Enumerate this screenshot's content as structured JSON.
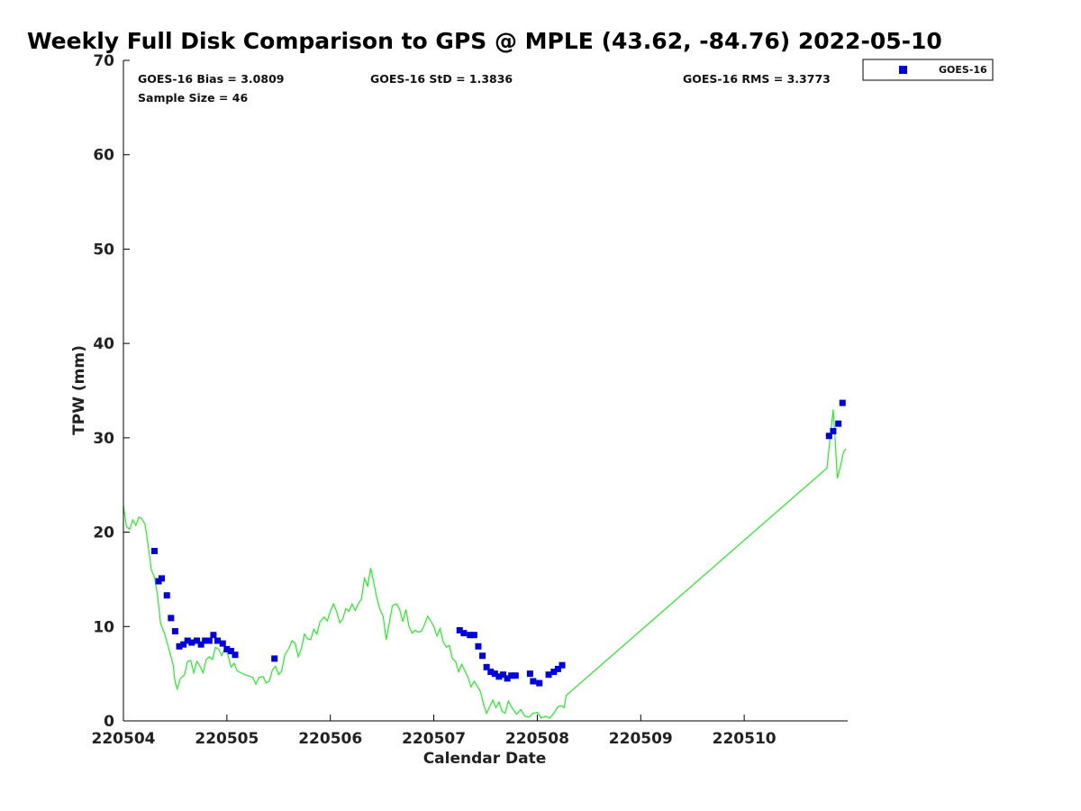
{
  "chart_data": {
    "type": "scatter",
    "title": "Weekly Full Disk Comparison to GPS @ MPLE (43.62, -84.76) 2022-05-10",
    "xlabel": "Calendar Date",
    "ylabel": "TPW (mm)",
    "xlim": [
      0,
      7
    ],
    "ylim": [
      0,
      70
    ],
    "x_ticks": [
      {
        "value": 0,
        "label": "220504"
      },
      {
        "value": 1,
        "label": "220505"
      },
      {
        "value": 2,
        "label": "220506"
      },
      {
        "value": 3,
        "label": "220507"
      },
      {
        "value": 4,
        "label": "220508"
      },
      {
        "value": 5,
        "label": "220509"
      },
      {
        "value": 6,
        "label": "220510"
      }
    ],
    "y_ticks": [
      0,
      10,
      20,
      30,
      40,
      50,
      60,
      70
    ],
    "stats": {
      "bias": "GOES-16 Bias = 3.0809",
      "std": "GOES-16 StD = 1.3836",
      "rms": "GOES-16 RMS = 3.3773",
      "sample": "Sample Size = 46"
    },
    "legend": {
      "label": "GOES-16",
      "position": "top-right-outside"
    },
    "colors": {
      "goes": "#0000dd",
      "gps": "#22ee22",
      "axis": "#000000"
    },
    "series": [
      {
        "name": "GOES-16",
        "kind": "scatter",
        "points": [
          [
            0.3,
            18.0
          ],
          [
            0.34,
            14.8
          ],
          [
            0.37,
            15.1
          ],
          [
            0.42,
            13.3
          ],
          [
            0.46,
            10.9
          ],
          [
            0.5,
            9.5
          ],
          [
            0.54,
            7.9
          ],
          [
            0.58,
            8.1
          ],
          [
            0.62,
            8.5
          ],
          [
            0.66,
            8.3
          ],
          [
            0.71,
            8.5
          ],
          [
            0.75,
            8.1
          ],
          [
            0.79,
            8.5
          ],
          [
            0.83,
            8.5
          ],
          [
            0.87,
            9.1
          ],
          [
            0.91,
            8.5
          ],
          [
            0.96,
            8.2
          ],
          [
            1.0,
            7.6
          ],
          [
            1.04,
            7.4
          ],
          [
            1.08,
            7.0
          ],
          [
            1.46,
            6.6
          ],
          [
            3.25,
            9.6
          ],
          [
            3.29,
            9.3
          ],
          [
            3.35,
            9.1
          ],
          [
            3.39,
            9.1
          ],
          [
            3.43,
            7.9
          ],
          [
            3.47,
            6.9
          ],
          [
            3.51,
            5.7
          ],
          [
            3.55,
            5.2
          ],
          [
            3.59,
            5.0
          ],
          [
            3.63,
            4.7
          ],
          [
            3.67,
            4.9
          ],
          [
            3.71,
            4.5
          ],
          [
            3.75,
            4.8
          ],
          [
            3.79,
            4.8
          ],
          [
            3.93,
            5.0
          ],
          [
            3.96,
            4.2
          ],
          [
            4.02,
            4.0
          ],
          [
            4.11,
            4.9
          ],
          [
            4.16,
            5.2
          ],
          [
            4.2,
            5.5
          ],
          [
            4.24,
            5.9
          ],
          [
            6.82,
            30.2
          ],
          [
            6.86,
            30.7
          ],
          [
            6.91,
            31.5
          ],
          [
            6.95,
            33.7
          ]
        ]
      },
      {
        "name": "GPS",
        "kind": "line",
        "points": [
          [
            0.0,
            22.8
          ],
          [
            0.03,
            20.6
          ],
          [
            0.06,
            20.3
          ],
          [
            0.09,
            21.3
          ],
          [
            0.12,
            20.7
          ],
          [
            0.15,
            21.6
          ],
          [
            0.18,
            21.4
          ],
          [
            0.21,
            20.8
          ],
          [
            0.24,
            18.5
          ],
          [
            0.27,
            16.0
          ],
          [
            0.3,
            15.2
          ],
          [
            0.33,
            13.3
          ],
          [
            0.36,
            10.3
          ],
          [
            0.4,
            9.2
          ],
          [
            0.44,
            7.6
          ],
          [
            0.48,
            6.0
          ],
          [
            0.5,
            4.1
          ],
          [
            0.52,
            3.4
          ],
          [
            0.55,
            4.5
          ],
          [
            0.59,
            4.9
          ],
          [
            0.62,
            6.3
          ],
          [
            0.65,
            6.4
          ],
          [
            0.68,
            5.1
          ],
          [
            0.71,
            6.3
          ],
          [
            0.74,
            5.8
          ],
          [
            0.77,
            5.1
          ],
          [
            0.8,
            6.5
          ],
          [
            0.83,
            6.8
          ],
          [
            0.86,
            6.5
          ],
          [
            0.89,
            7.8
          ],
          [
            0.92,
            7.6
          ],
          [
            0.95,
            6.9
          ],
          [
            0.98,
            7.7
          ],
          [
            1.01,
            7.0
          ],
          [
            1.04,
            5.7
          ],
          [
            1.07,
            6.1
          ],
          [
            1.1,
            5.3
          ],
          [
            1.15,
            5.0
          ],
          [
            1.2,
            4.8
          ],
          [
            1.25,
            4.6
          ],
          [
            1.28,
            3.9
          ],
          [
            1.31,
            4.6
          ],
          [
            1.35,
            4.7
          ],
          [
            1.38,
            4.0
          ],
          [
            1.41,
            4.2
          ],
          [
            1.44,
            5.4
          ],
          [
            1.47,
            5.8
          ],
          [
            1.5,
            4.9
          ],
          [
            1.53,
            5.3
          ],
          [
            1.56,
            7.0
          ],
          [
            1.6,
            7.7
          ],
          [
            1.63,
            8.5
          ],
          [
            1.66,
            8.2
          ],
          [
            1.69,
            6.8
          ],
          [
            1.72,
            7.7
          ],
          [
            1.75,
            9.2
          ],
          [
            1.78,
            8.7
          ],
          [
            1.81,
            8.6
          ],
          [
            1.84,
            9.7
          ],
          [
            1.87,
            9.2
          ],
          [
            1.9,
            10.5
          ],
          [
            1.94,
            11.0
          ],
          [
            1.97,
            10.6
          ],
          [
            2.0,
            11.6
          ],
          [
            2.03,
            12.4
          ],
          [
            2.06,
            11.6
          ],
          [
            2.09,
            10.4
          ],
          [
            2.12,
            10.8
          ],
          [
            2.15,
            11.9
          ],
          [
            2.18,
            11.6
          ],
          [
            2.21,
            12.4
          ],
          [
            2.24,
            11.7
          ],
          [
            2.27,
            12.4
          ],
          [
            2.3,
            12.9
          ],
          [
            2.33,
            15.1
          ],
          [
            2.36,
            14.3
          ],
          [
            2.39,
            16.2
          ],
          [
            2.42,
            14.6
          ],
          [
            2.45,
            13.0
          ],
          [
            2.48,
            11.8
          ],
          [
            2.51,
            11.1
          ],
          [
            2.54,
            8.6
          ],
          [
            2.57,
            10.4
          ],
          [
            2.6,
            12.2
          ],
          [
            2.64,
            12.4
          ],
          [
            2.67,
            11.8
          ],
          [
            2.7,
            10.5
          ],
          [
            2.73,
            11.8
          ],
          [
            2.76,
            10.0
          ],
          [
            2.79,
            9.3
          ],
          [
            2.82,
            9.6
          ],
          [
            2.85,
            9.4
          ],
          [
            2.88,
            9.5
          ],
          [
            2.91,
            10.2
          ],
          [
            2.94,
            11.1
          ],
          [
            2.97,
            10.6
          ],
          [
            3.0,
            10.0
          ],
          [
            3.03,
            9.0
          ],
          [
            3.06,
            9.8
          ],
          [
            3.09,
            8.4
          ],
          [
            3.12,
            7.8
          ],
          [
            3.15,
            8.0
          ],
          [
            3.18,
            6.6
          ],
          [
            3.21,
            6.3
          ],
          [
            3.24,
            5.2
          ],
          [
            3.27,
            6.0
          ],
          [
            3.3,
            5.3
          ],
          [
            3.33,
            4.6
          ],
          [
            3.36,
            3.6
          ],
          [
            3.39,
            4.2
          ],
          [
            3.42,
            3.7
          ],
          [
            3.45,
            3.1
          ],
          [
            3.48,
            1.8
          ],
          [
            3.51,
            0.8
          ],
          [
            3.54,
            1.5
          ],
          [
            3.57,
            2.2
          ],
          [
            3.6,
            1.4
          ],
          [
            3.63,
            2.0
          ],
          [
            3.66,
            1.0
          ],
          [
            3.69,
            0.8
          ],
          [
            3.72,
            2.1
          ],
          [
            3.76,
            1.3
          ],
          [
            3.8,
            0.7
          ],
          [
            3.84,
            1.2
          ],
          [
            3.88,
            0.5
          ],
          [
            3.92,
            0.4
          ],
          [
            3.96,
            0.8
          ],
          [
            4.0,
            0.9
          ],
          [
            4.04,
            0.3
          ],
          [
            4.08,
            0.5
          ],
          [
            4.12,
            0.3
          ],
          [
            4.16,
            0.8
          ],
          [
            4.2,
            1.5
          ],
          [
            4.23,
            1.6
          ],
          [
            4.26,
            1.4
          ],
          [
            4.28,
            2.7
          ],
          [
            6.8,
            26.8
          ],
          [
            6.83,
            30.0
          ],
          [
            6.86,
            33.0
          ],
          [
            6.88,
            29.6
          ],
          [
            6.9,
            25.7
          ],
          [
            6.93,
            27.0
          ],
          [
            6.96,
            28.5
          ],
          [
            6.98,
            28.8
          ]
        ]
      }
    ]
  }
}
